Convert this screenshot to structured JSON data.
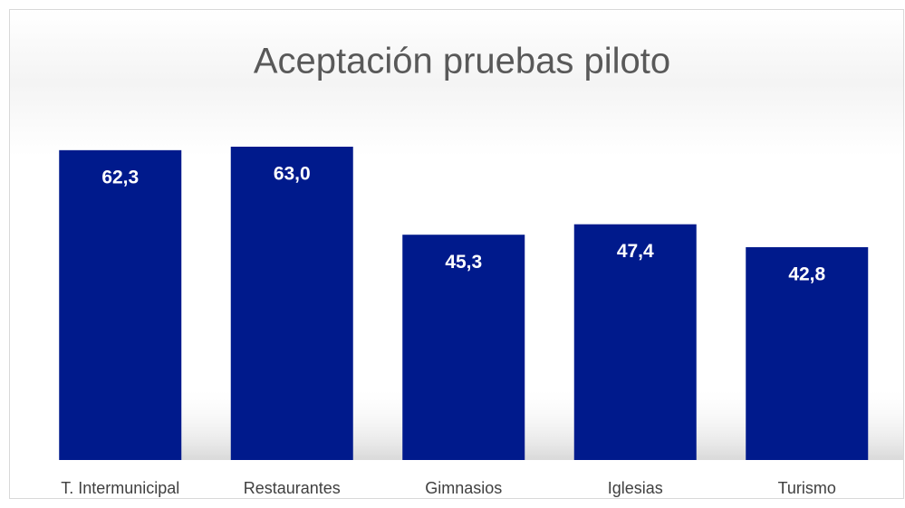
{
  "chart_data": {
    "type": "bar",
    "title": "Aceptación pruebas piloto",
    "categories": [
      "T. Intermunicipal",
      "Restaurantes",
      "Gimnasios",
      "Iglesias",
      "Turismo"
    ],
    "values": [
      62.3,
      63.0,
      45.3,
      47.4,
      42.8
    ],
    "value_labels": [
      "62,3",
      "63,0",
      "45,3",
      "47,4",
      "42,8"
    ],
    "color": "#001a8c"
  }
}
